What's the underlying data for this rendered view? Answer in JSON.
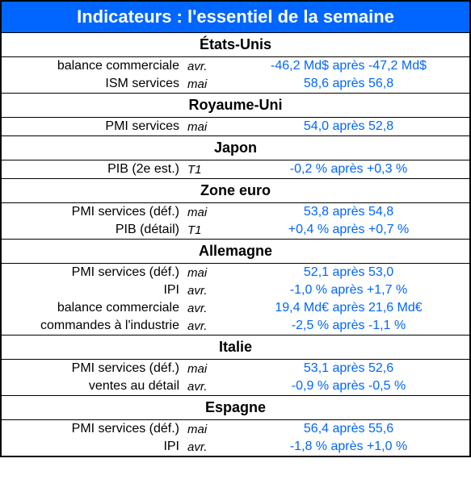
{
  "title": "Indicateurs : l'essentiel de la semaine",
  "colors": {
    "header_bg": "#0066ff",
    "header_text": "#ffffff",
    "value_text": "#0066ff",
    "label_text": "#000000",
    "border": "#000000"
  },
  "regions": [
    {
      "name": "États-Unis",
      "rows": [
        {
          "indicator": "balance commerciale",
          "period": "avr.",
          "value": "-46,2 Md$ après -47,2 Md$"
        },
        {
          "indicator": "ISM services",
          "period": "mai",
          "value": "58,6 après 56,8"
        }
      ]
    },
    {
      "name": "Royaume-Uni",
      "rows": [
        {
          "indicator": "PMI services",
          "period": "mai",
          "value": "54,0 après 52,8"
        }
      ]
    },
    {
      "name": "Japon",
      "rows": [
        {
          "indicator": "PIB (2e est.)",
          "period": "T1",
          "value": "-0,2 % après +0,3 %"
        }
      ]
    },
    {
      "name": "Zone euro",
      "rows": [
        {
          "indicator": "PMI services (déf.)",
          "period": "mai",
          "value": "53,8 après 54,8"
        },
        {
          "indicator": "PIB (détail)",
          "period": "T1",
          "value": "+0,4 % après +0,7 %"
        }
      ]
    },
    {
      "name": "Allemagne",
      "rows": [
        {
          "indicator": "PMI services (déf.)",
          "period": "mai",
          "value": "52,1 après 53,0"
        },
        {
          "indicator": "IPI",
          "period": "avr.",
          "value": "-1,0 % après +1,7 %"
        },
        {
          "indicator": "balance commerciale",
          "period": "avr.",
          "value": "19,4 Md€ après 21,6 Md€"
        },
        {
          "indicator": "commandes à l'industrie",
          "period": "avr.",
          "value": "-2,5 % après -1,1 %"
        }
      ]
    },
    {
      "name": "Italie",
      "rows": [
        {
          "indicator": "PMI services (déf.)",
          "period": "mai",
          "value": "53,1 après 52,6"
        },
        {
          "indicator": "ventes au détail",
          "period": "avr.",
          "value": "-0,9 % après -0,5 %"
        }
      ]
    },
    {
      "name": "Espagne",
      "rows": [
        {
          "indicator": "PMI services (déf.)",
          "period": "mai",
          "value": "56,4 après 55,6"
        },
        {
          "indicator": "IPI",
          "period": "avr.",
          "value": "-1,8 % après +1,0 %"
        }
      ]
    }
  ]
}
